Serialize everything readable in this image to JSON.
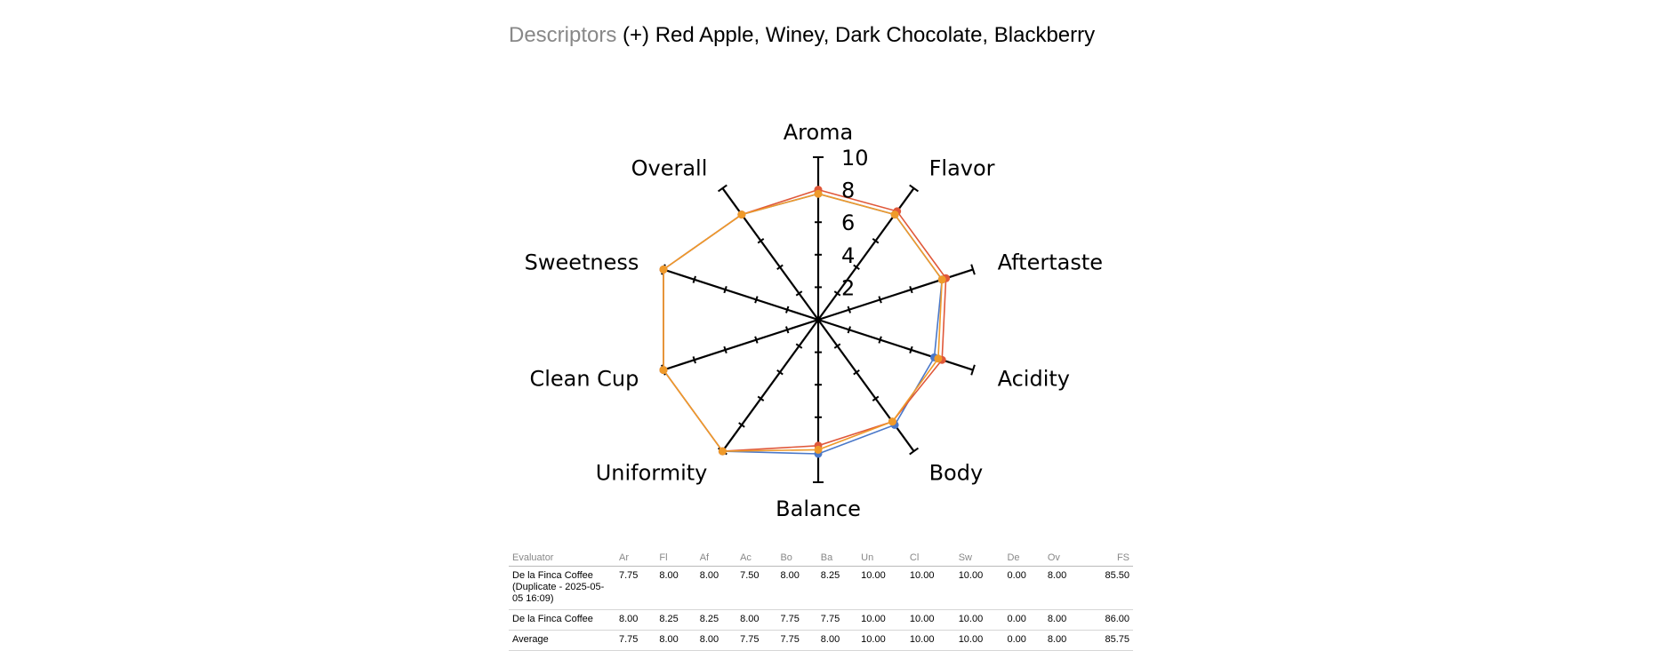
{
  "descriptors": {
    "label": "Descriptors",
    "value": "(+) Red Apple, Winey, Dark Chocolate, Blackberry"
  },
  "chart_data": {
    "type": "radar",
    "axes": [
      "Aroma",
      "Flavor",
      "Aftertaste",
      "Acidity",
      "Body",
      "Balance",
      "Uniformity",
      "Clean Cup",
      "Sweetness",
      "Overall"
    ],
    "scale_labels": [
      "2",
      "4",
      "6",
      "8",
      "10"
    ],
    "range": [
      0,
      10
    ],
    "series": [
      {
        "values": [
          7.75,
          8.0,
          8.0,
          7.5,
          8.0,
          8.25,
          10.0,
          10.0,
          10.0,
          8.0
        ],
        "color": "#4a78c9"
      },
      {
        "values": [
          8.0,
          8.25,
          8.25,
          8.0,
          7.75,
          7.75,
          10.0,
          10.0,
          10.0,
          8.0
        ],
        "color": "#e0583a"
      },
      {
        "values": [
          7.75,
          8.0,
          8.0,
          7.75,
          7.75,
          8.0,
          10.0,
          10.0,
          10.0,
          8.0
        ],
        "color": "#ef9a2a"
      }
    ]
  },
  "table": {
    "headers": [
      "Evaluator",
      "Ar",
      "Fl",
      "Af",
      "Ac",
      "Bo",
      "Ba",
      "Un",
      "Cl",
      "Sw",
      "De",
      "Ov",
      "FS"
    ],
    "rows": [
      {
        "evaluator": "De la Finca Coffee (Duplicate - 2025-05-05 16:09)",
        "scores": [
          "7.75",
          "8.00",
          "8.00",
          "7.50",
          "8.00",
          "8.25",
          "10.00",
          "10.00",
          "10.00",
          "0.00",
          "8.00"
        ],
        "fs": "85.50"
      },
      {
        "evaluator": "De la Finca Coffee",
        "scores": [
          "8.00",
          "8.25",
          "8.25",
          "8.00",
          "7.75",
          "7.75",
          "10.00",
          "10.00",
          "10.00",
          "0.00",
          "8.00"
        ],
        "fs": "86.00"
      },
      {
        "evaluator": "Average",
        "scores": [
          "7.75",
          "8.00",
          "8.00",
          "7.75",
          "7.75",
          "8.00",
          "10.00",
          "10.00",
          "10.00",
          "0.00",
          "8.00"
        ],
        "fs": "85.75"
      }
    ]
  }
}
